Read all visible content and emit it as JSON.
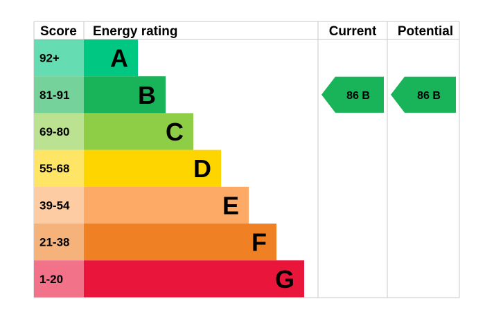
{
  "headers": {
    "score": "Score",
    "energy_rating": "Energy rating",
    "current": "Current",
    "potential": "Potential"
  },
  "chart_data": {
    "type": "bar",
    "bands": [
      {
        "letter": "A",
        "range": "92+",
        "color": "#00c781",
        "score_color": "#66dcb3"
      },
      {
        "letter": "B",
        "range": "81-91",
        "color": "#19b459",
        "score_color": "#75d29b"
      },
      {
        "letter": "C",
        "range": "69-80",
        "color": "#8dce46",
        "score_color": "#bbe290"
      },
      {
        "letter": "D",
        "range": "55-68",
        "color": "#ffd500",
        "score_color": "#ffe566"
      },
      {
        "letter": "E",
        "range": "39-54",
        "color": "#fcaa65",
        "score_color": "#fdccA3"
      },
      {
        "letter": "F",
        "range": "21-38",
        "color": "#ef8023",
        "score_color": "#f5b37b"
      },
      {
        "letter": "G",
        "range": "1-20",
        "color": "#e9153b",
        "score_color": "#f27389"
      }
    ],
    "current": {
      "value": 86,
      "band": "B",
      "label": "86  B",
      "color": "#19b459"
    },
    "potential": {
      "value": 86,
      "band": "B",
      "label": "86  B",
      "color": "#19b459"
    }
  }
}
